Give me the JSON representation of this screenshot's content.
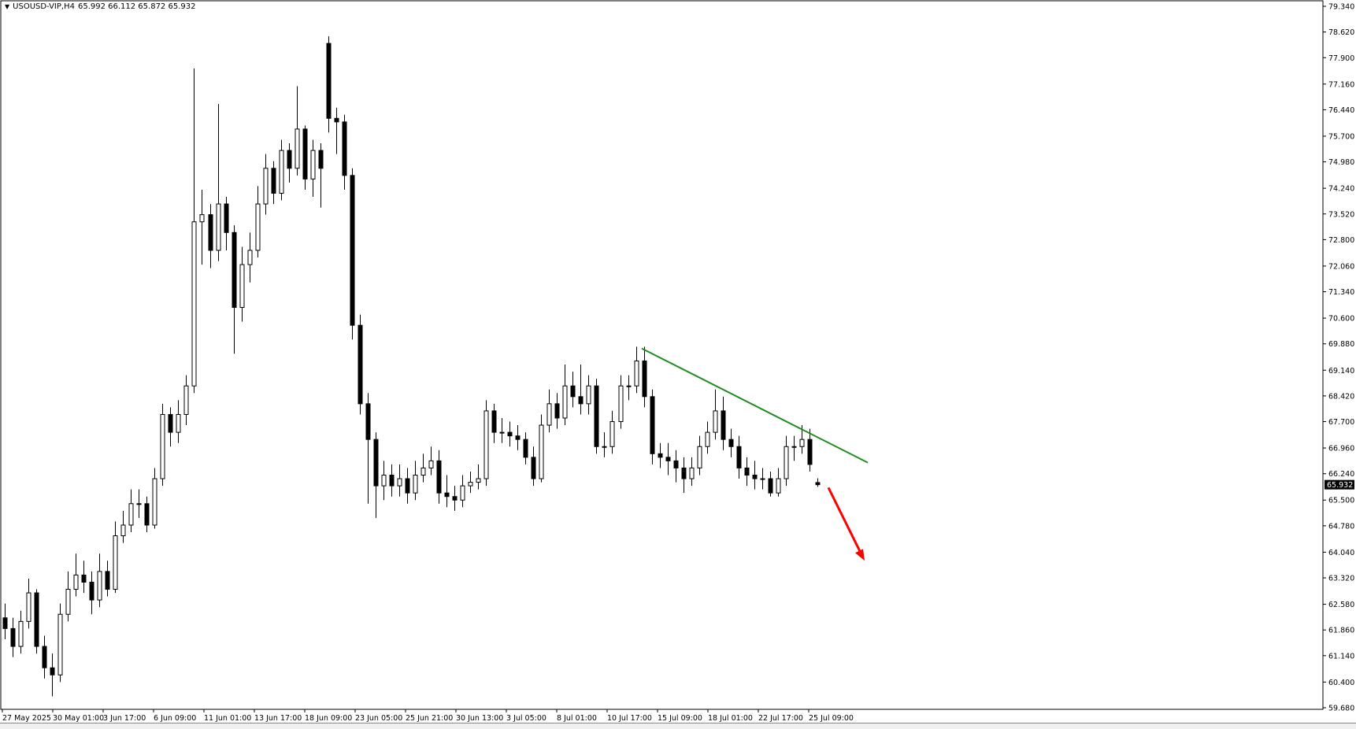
{
  "header": {
    "menu_icon": "triangle-down-icon",
    "symbol": "USOUSD-VIP,H4",
    "ohlc": "65.992 66.112 65.872 65.932"
  },
  "colors": {
    "background": "#ffffff",
    "candle_up_fill": "#ffffff",
    "candle_down_fill": "#000000",
    "candle_outline": "#000000",
    "trendline": "#1e8c1e",
    "arrow": "#ff0000",
    "price_label_bg": "#000000",
    "price_label_text": "#ffffff"
  },
  "chart_data": {
    "type": "candlestick",
    "title": "USOUSD-VIP,H4",
    "timeframe": "H4",
    "ylim": [
      59.68,
      79.34
    ],
    "grid": false,
    "y_ticks": [
      "79.340",
      "78.620",
      "77.900",
      "77.160",
      "76.440",
      "75.700",
      "74.980",
      "74.240",
      "73.520",
      "72.800",
      "72.060",
      "71.340",
      "70.600",
      "69.880",
      "69.140",
      "68.420",
      "67.700",
      "66.960",
      "66.240",
      "65.500",
      "64.780",
      "64.040",
      "63.320",
      "62.580",
      "61.860",
      "61.140",
      "60.400",
      "59.680"
    ],
    "x_ticks": [
      "27 May 2025",
      "30 May 01:00",
      "3 Jun 17:00",
      "6 Jun 09:00",
      "11 Jun 01:00",
      "13 Jun 17:00",
      "18 Jun 09:00",
      "23 Jun 05:00",
      "25 Jun 21:00",
      "30 Jun 13:00",
      "3 Jul 05:00",
      "8 Jul 01:00",
      "10 Jul 17:00",
      "15 Jul 09:00",
      "18 Jul 01:00",
      "22 Jul 17:00",
      "25 Jul 09:00"
    ],
    "current_price": "65.932",
    "candles_ohlc": [
      [
        62.2,
        62.6,
        61.6,
        61.9
      ],
      [
        61.9,
        62.2,
        61.1,
        61.4
      ],
      [
        61.4,
        62.4,
        61.2,
        62.1
      ],
      [
        62.1,
        63.3,
        61.9,
        62.9
      ],
      [
        62.9,
        63.0,
        61.2,
        61.4
      ],
      [
        61.4,
        61.7,
        60.5,
        60.8
      ],
      [
        60.8,
        61.2,
        60.0,
        60.6
      ],
      [
        60.6,
        62.6,
        60.4,
        62.3
      ],
      [
        62.3,
        63.5,
        62.1,
        63.0
      ],
      [
        63.0,
        64.0,
        62.8,
        63.4
      ],
      [
        63.4,
        63.8,
        62.9,
        63.2
      ],
      [
        63.2,
        63.5,
        62.3,
        62.7
      ],
      [
        62.7,
        64.0,
        62.5,
        63.5
      ],
      [
        63.5,
        63.8,
        62.8,
        63.0
      ],
      [
        63.0,
        64.9,
        62.9,
        64.5
      ],
      [
        64.5,
        65.2,
        64.3,
        64.8
      ],
      [
        64.8,
        65.8,
        64.6,
        65.4
      ],
      [
        65.4,
        65.8,
        65.0,
        65.4
      ],
      [
        65.4,
        65.6,
        64.6,
        64.8
      ],
      [
        64.8,
        66.4,
        64.7,
        66.1
      ],
      [
        66.1,
        68.2,
        65.9,
        67.9
      ],
      [
        67.9,
        68.1,
        67.0,
        67.4
      ],
      [
        67.4,
        68.3,
        67.1,
        67.9
      ],
      [
        67.9,
        69.0,
        67.6,
        68.7
      ],
      [
        68.7,
        77.6,
        68.5,
        73.3
      ],
      [
        73.3,
        74.2,
        72.1,
        73.5
      ],
      [
        73.5,
        73.8,
        72.0,
        72.5
      ],
      [
        72.5,
        76.6,
        72.2,
        73.8
      ],
      [
        73.8,
        74.0,
        72.5,
        73.0
      ],
      [
        73.0,
        73.2,
        69.6,
        70.9
      ],
      [
        70.9,
        72.6,
        70.5,
        72.1
      ],
      [
        72.1,
        73.0,
        71.6,
        72.5
      ],
      [
        72.5,
        74.3,
        72.3,
        73.8
      ],
      [
        73.8,
        75.2,
        73.5,
        74.8
      ],
      [
        74.8,
        75.0,
        73.8,
        74.1
      ],
      [
        74.1,
        75.6,
        73.9,
        75.3
      ],
      [
        75.3,
        75.5,
        74.4,
        74.8
      ],
      [
        74.8,
        77.1,
        74.6,
        75.9
      ],
      [
        75.9,
        76.0,
        74.2,
        74.5
      ],
      [
        74.5,
        75.6,
        74.0,
        75.3
      ],
      [
        75.3,
        75.5,
        73.7,
        74.8
      ],
      [
        78.3,
        78.5,
        75.8,
        76.2
      ],
      [
        76.2,
        76.5,
        75.2,
        76.1
      ],
      [
        76.1,
        76.3,
        74.2,
        74.6
      ],
      [
        74.6,
        74.8,
        70.0,
        70.4
      ],
      [
        70.4,
        70.7,
        67.9,
        68.2
      ],
      [
        68.2,
        68.5,
        65.4,
        67.2
      ],
      [
        67.2,
        67.4,
        65.0,
        65.9
      ],
      [
        65.9,
        66.6,
        65.5,
        66.2
      ],
      [
        66.2,
        66.5,
        65.6,
        65.9
      ],
      [
        65.9,
        66.5,
        65.6,
        66.1
      ],
      [
        66.1,
        66.4,
        65.4,
        65.7
      ],
      [
        65.7,
        66.6,
        65.5,
        66.2
      ],
      [
        66.2,
        66.8,
        66.0,
        66.4
      ],
      [
        66.4,
        67.0,
        66.2,
        66.6
      ],
      [
        66.6,
        66.9,
        65.4,
        65.7
      ],
      [
        65.7,
        66.2,
        65.3,
        65.6
      ],
      [
        65.6,
        65.9,
        65.2,
        65.5
      ],
      [
        65.5,
        66.2,
        65.3,
        65.9
      ],
      [
        65.9,
        66.3,
        65.7,
        66.0
      ],
      [
        66.0,
        66.5,
        65.8,
        66.1
      ],
      [
        66.1,
        68.3,
        65.9,
        68.0
      ],
      [
        68.0,
        68.2,
        67.1,
        67.4
      ],
      [
        67.4,
        67.8,
        67.1,
        67.4
      ],
      [
        67.4,
        67.7,
        67.0,
        67.3
      ],
      [
        67.3,
        67.6,
        66.9,
        67.2
      ],
      [
        67.2,
        67.4,
        66.5,
        66.7
      ],
      [
        66.7,
        67.0,
        65.9,
        66.1
      ],
      [
        66.1,
        67.9,
        66.0,
        67.6
      ],
      [
        67.6,
        68.6,
        67.4,
        68.2
      ],
      [
        68.2,
        68.5,
        67.5,
        67.8
      ],
      [
        67.8,
        69.3,
        67.6,
        68.7
      ],
      [
        68.7,
        69.1,
        68.1,
        68.4
      ],
      [
        68.4,
        69.3,
        67.9,
        68.2
      ],
      [
        68.2,
        69.0,
        67.9,
        68.7
      ],
      [
        68.7,
        68.9,
        66.8,
        67.0
      ],
      [
        67.0,
        67.4,
        66.7,
        67.0
      ],
      [
        67.0,
        68.0,
        66.8,
        67.7
      ],
      [
        67.7,
        69.0,
        67.5,
        68.7
      ],
      [
        68.7,
        69.0,
        68.3,
        68.7
      ],
      [
        68.7,
        69.8,
        68.5,
        69.4
      ],
      [
        69.4,
        69.8,
        68.1,
        68.4
      ],
      [
        68.4,
        68.6,
        66.5,
        66.8
      ],
      [
        66.8,
        67.1,
        66.4,
        66.7
      ],
      [
        66.7,
        67.1,
        66.2,
        66.6
      ],
      [
        66.6,
        66.9,
        66.0,
        66.4
      ],
      [
        66.4,
        66.7,
        65.7,
        66.1
      ],
      [
        66.1,
        66.7,
        65.9,
        66.4
      ],
      [
        66.4,
        67.3,
        66.2,
        67.0
      ],
      [
        67.0,
        67.7,
        66.8,
        67.4
      ],
      [
        67.4,
        68.6,
        67.2,
        68.0
      ],
      [
        68.0,
        68.4,
        66.9,
        67.2
      ],
      [
        67.2,
        67.5,
        66.7,
        67.0
      ],
      [
        67.0,
        67.3,
        66.1,
        66.4
      ],
      [
        66.4,
        66.7,
        65.9,
        66.2
      ],
      [
        66.2,
        66.6,
        65.8,
        66.1
      ],
      [
        66.1,
        66.4,
        65.8,
        66.1
      ],
      [
        66.1,
        66.3,
        65.6,
        65.7
      ],
      [
        65.7,
        66.4,
        65.6,
        66.1
      ],
      [
        66.1,
        67.3,
        65.9,
        67.0
      ],
      [
        67.0,
        67.3,
        66.6,
        67.0
      ],
      [
        67.0,
        67.6,
        66.8,
        67.2
      ],
      [
        67.2,
        67.5,
        66.3,
        66.5
      ],
      [
        65.992,
        66.112,
        65.872,
        65.932
      ]
    ],
    "annotations": {
      "trendline": {
        "type": "descending trendline",
        "start_price": 69.75,
        "end_price": 66.55
      },
      "arrow": {
        "type": "bearish arrow",
        "start_price": 65.85,
        "end_price": 63.8
      }
    }
  }
}
